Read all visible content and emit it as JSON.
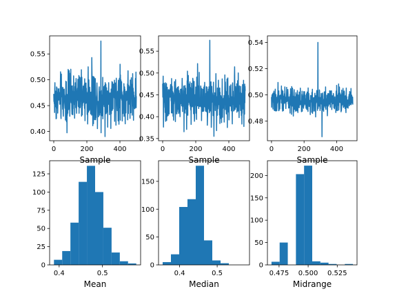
{
  "chart_data": [
    {
      "type": "line",
      "xlabel": "Sample",
      "ylabel": "",
      "xlim": [
        -25,
        525
      ],
      "ylim": [
        0.382,
        0.585
      ],
      "xticks": [
        0,
        200,
        400
      ],
      "yticks": [
        0.4,
        0.45,
        0.5,
        0.55
      ],
      "ytick_labels": [
        "0.40",
        "0.45",
        "0.50",
        "0.55"
      ],
      "color": "#1f77b4",
      "series": [
        {
          "n": 500,
          "center": 0.465,
          "spread": 0.032,
          "min": 0.39,
          "max": 0.575
        }
      ]
    },
    {
      "type": "line",
      "xlabel": "Sample",
      "ylabel": "",
      "xlim": [
        -25,
        525
      ],
      "ylim": [
        0.345,
        0.585
      ],
      "xticks": [
        0,
        200,
        400
      ],
      "yticks": [
        0.35,
        0.4,
        0.45,
        0.5,
        0.55
      ],
      "ytick_labels": [
        "0.35",
        "0.40",
        "0.45",
        "0.50",
        "0.55"
      ],
      "color": "#1f77b4",
      "series": [
        {
          "n": 500,
          "center": 0.44,
          "spread": 0.035,
          "min": 0.355,
          "max": 0.575
        }
      ]
    },
    {
      "type": "line",
      "xlabel": "Sample",
      "ylabel": "",
      "xlim": [
        -25,
        525
      ],
      "ylim": [
        0.465,
        0.545
      ],
      "xticks": [
        0,
        200,
        400
      ],
      "yticks": [
        0.48,
        0.5,
        0.52,
        0.54
      ],
      "ytick_labels": [
        "0.48",
        "0.50",
        "0.52",
        "0.54"
      ],
      "color": "#1f77b4",
      "series": [
        {
          "n": 500,
          "center": 0.496,
          "spread": 0.006,
          "min": 0.468,
          "max": 0.54
        }
      ]
    },
    {
      "type": "bar",
      "xlabel": "Mean",
      "ylabel": "",
      "bin_edges": [
        0.388,
        0.407,
        0.426,
        0.445,
        0.464,
        0.483,
        0.502,
        0.521,
        0.54,
        0.559,
        0.578
      ],
      "values": [
        7,
        19,
        58,
        114,
        136,
        100,
        51,
        17,
        5,
        2
      ],
      "xlim": [
        0.378,
        0.588
      ],
      "ylim": [
        0,
        143
      ],
      "xticks": [
        0.4,
        0.5
      ],
      "xtick_labels": [
        "0.4",
        "0.5"
      ],
      "yticks": [
        0,
        25,
        50,
        75,
        100,
        125
      ],
      "ytick_labels": [
        "0",
        "25",
        "50",
        "75",
        "100",
        "125"
      ],
      "color": "#1f77b4"
    },
    {
      "type": "bar",
      "xlabel": "Median",
      "ylabel": "",
      "bin_edges": [
        0.355,
        0.377,
        0.399,
        0.421,
        0.443,
        0.465,
        0.487,
        0.509,
        0.531,
        0.553,
        0.575
      ],
      "values": [
        5,
        19,
        104,
        118,
        178,
        44,
        8,
        3,
        0,
        0
      ],
      "xlim": [
        0.344,
        0.586
      ],
      "ylim": [
        0,
        187
      ],
      "xticks": [
        0.4,
        0.5
      ],
      "xtick_labels": [
        "0.4",
        "0.5"
      ],
      "yticks": [
        0,
        50,
        100,
        150
      ],
      "ytick_labels": [
        "0",
        "50",
        "100",
        "150"
      ],
      "color": "#1f77b4"
    },
    {
      "type": "bar",
      "xlabel": "Midrange",
      "ylabel": "",
      "bin_edges": [
        0.4685,
        0.4755,
        0.4825,
        0.4895,
        0.4965,
        0.5035,
        0.5105,
        0.5175,
        0.5245,
        0.5315,
        0.5385
      ],
      "values": [
        7,
        50,
        0,
        203,
        222,
        8,
        5,
        2,
        0,
        2
      ],
      "xlim": [
        0.465,
        0.542
      ],
      "ylim": [
        0,
        233
      ],
      "xticks": [
        0.475,
        0.5,
        0.525
      ],
      "xtick_labels": [
        "0.475",
        "0.500",
        "0.525"
      ],
      "yticks": [
        0,
        50,
        100,
        150,
        200
      ],
      "ytick_labels": [
        "0",
        "50",
        "100",
        "150",
        "200"
      ],
      "color": "#1f77b4"
    }
  ]
}
